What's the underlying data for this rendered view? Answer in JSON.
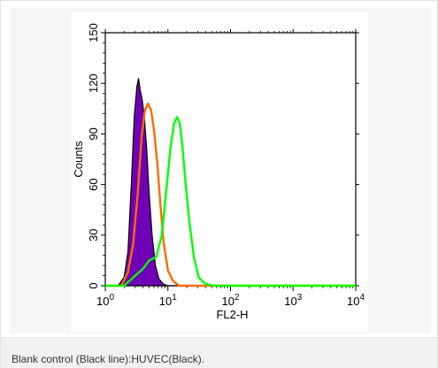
{
  "caption": "Blank control (Black line):HUVEC(Black).",
  "chart_data": {
    "type": "area",
    "xlabel": "FL2-H",
    "ylabel": "Counts",
    "x_scale": "log",
    "xlim": [
      1,
      10000
    ],
    "ylim": [
      0,
      150
    ],
    "x_ticks": [
      {
        "value": 1,
        "base": "10",
        "exp": "0"
      },
      {
        "value": 10,
        "base": "10",
        "exp": "1"
      },
      {
        "value": 100,
        "base": "10",
        "exp": "2"
      },
      {
        "value": 1000,
        "base": "10",
        "exp": "3"
      },
      {
        "value": 10000,
        "base": "10",
        "exp": "4"
      }
    ],
    "y_ticks": [
      "0",
      "30",
      "60",
      "90",
      "120",
      "150"
    ],
    "series": [
      {
        "color": "#7000b8",
        "fill": true,
        "points": [
          [
            1,
            0
          ],
          [
            1.6,
            0
          ],
          [
            2.0,
            5
          ],
          [
            2.3,
            20
          ],
          [
            2.6,
            60
          ],
          [
            2.9,
            100
          ],
          [
            3.2,
            118
          ],
          [
            3.4,
            123
          ],
          [
            3.6,
            116
          ],
          [
            3.9,
            110
          ],
          [
            4.2,
            100
          ],
          [
            4.6,
            80
          ],
          [
            5.0,
            55
          ],
          [
            5.6,
            30
          ],
          [
            6.3,
            12
          ],
          [
            7.2,
            4
          ],
          [
            8.5,
            1
          ],
          [
            10,
            0
          ],
          [
            10000,
            0
          ]
        ]
      },
      {
        "color": "#ff6a00",
        "fill": false,
        "points": [
          [
            1,
            0
          ],
          [
            1.8,
            0
          ],
          [
            2.3,
            8
          ],
          [
            2.8,
            25
          ],
          [
            3.3,
            55
          ],
          [
            3.8,
            88
          ],
          [
            4.3,
            104
          ],
          [
            4.8,
            108
          ],
          [
            5.4,
            104
          ],
          [
            6.0,
            92
          ],
          [
            6.8,
            72
          ],
          [
            7.6,
            48
          ],
          [
            8.6,
            25
          ],
          [
            10,
            9
          ],
          [
            12,
            3
          ],
          [
            15,
            0
          ],
          [
            10000,
            0
          ]
        ]
      },
      {
        "color": "#00ff00",
        "fill": false,
        "points": [
          [
            1,
            0
          ],
          [
            2.0,
            0
          ],
          [
            3.0,
            6
          ],
          [
            4.0,
            10
          ],
          [
            5.0,
            15
          ],
          [
            6.5,
            17
          ],
          [
            8.0,
            30
          ],
          [
            9.5,
            58
          ],
          [
            11,
            82
          ],
          [
            12.5,
            96
          ],
          [
            14,
            100
          ],
          [
            15.5,
            96
          ],
          [
            17,
            83
          ],
          [
            19,
            62
          ],
          [
            22,
            38
          ],
          [
            26,
            17
          ],
          [
            31,
            5
          ],
          [
            40,
            1
          ],
          [
            55,
            0
          ],
          [
            10000,
            0
          ]
        ]
      }
    ]
  }
}
